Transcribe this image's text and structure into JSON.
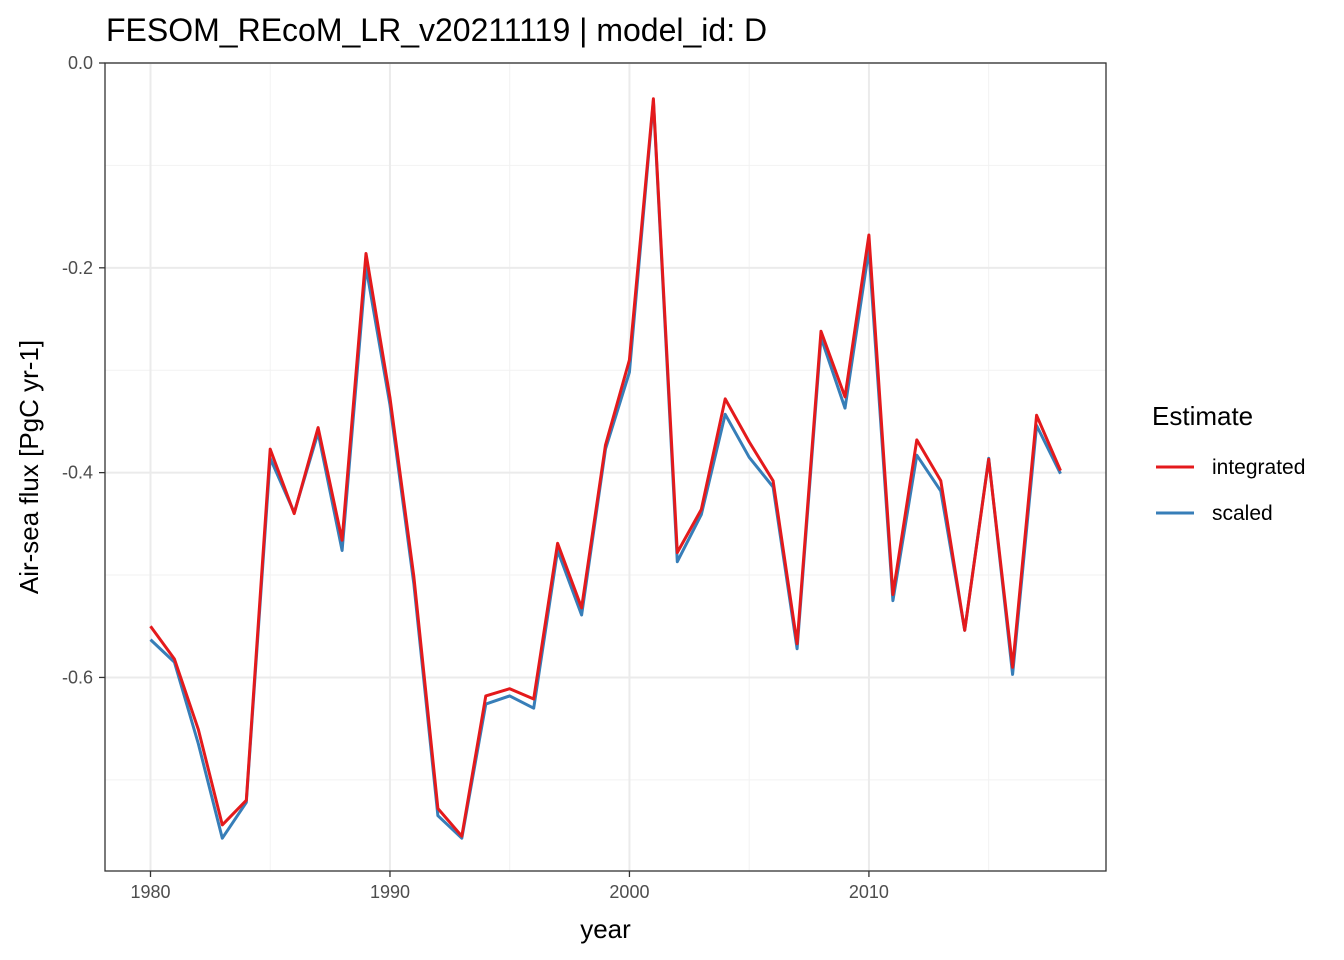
{
  "chart_data": {
    "type": "line",
    "title": "FESOM_REcoM_LR_v20211119 | model_id: D",
    "xlabel": "year",
    "ylabel": "Air-sea flux [PgC yr-1]",
    "xlim": [
      1978.1,
      2019.9
    ],
    "ylim": [
      -0.789,
      0.0
    ],
    "x_ticks": [
      1980,
      1990,
      2000,
      2010
    ],
    "x_tick_labels": [
      "1980",
      "1990",
      "2000",
      "2010"
    ],
    "y_ticks": [
      0.0,
      -0.2,
      -0.4,
      -0.6
    ],
    "y_tick_labels": [
      "0.0",
      "-0.2",
      "-0.4",
      "-0.6"
    ],
    "y_minor_ticks": [
      -0.1,
      -0.3,
      -0.5,
      -0.7
    ],
    "x_minor_ticks": [
      1985,
      1995,
      2005,
      2015
    ],
    "grid": true,
    "legend": {
      "title": "Estimate",
      "position": "right"
    },
    "x": [
      1980,
      1981,
      1982,
      1983,
      1984,
      1985,
      1986,
      1987,
      1988,
      1989,
      1990,
      1991,
      1992,
      1993,
      1994,
      1995,
      1996,
      1997,
      1998,
      1999,
      2000,
      2001,
      2002,
      2003,
      2004,
      2005,
      2006,
      2007,
      2008,
      2009,
      2010,
      2011,
      2012,
      2013,
      2014,
      2015,
      2016,
      2017,
      2018
    ],
    "series": [
      {
        "name": "scaled",
        "color": "#377eb8",
        "values": [
          -0.563,
          -0.585,
          -0.665,
          -0.757,
          -0.722,
          -0.386,
          -0.439,
          -0.361,
          -0.476,
          -0.199,
          -0.334,
          -0.509,
          -0.735,
          -0.757,
          -0.626,
          -0.618,
          -0.63,
          -0.476,
          -0.539,
          -0.377,
          -0.302,
          -0.037,
          -0.487,
          -0.441,
          -0.343,
          -0.385,
          -0.414,
          -0.572,
          -0.268,
          -0.337,
          -0.182,
          -0.525,
          -0.383,
          -0.418,
          -0.554,
          -0.386,
          -0.597,
          -0.354,
          -0.401
        ]
      },
      {
        "name": "integrated",
        "color": "#e41a1c",
        "values": [
          -0.55,
          -0.582,
          -0.651,
          -0.744,
          -0.72,
          -0.377,
          -0.44,
          -0.356,
          -0.466,
          -0.186,
          -0.327,
          -0.502,
          -0.728,
          -0.755,
          -0.618,
          -0.611,
          -0.621,
          -0.469,
          -0.532,
          -0.373,
          -0.29,
          -0.035,
          -0.478,
          -0.436,
          -0.328,
          -0.37,
          -0.408,
          -0.567,
          -0.262,
          -0.326,
          -0.168,
          -0.519,
          -0.368,
          -0.408,
          -0.554,
          -0.387,
          -0.59,
          -0.344,
          -0.398
        ]
      }
    ]
  }
}
